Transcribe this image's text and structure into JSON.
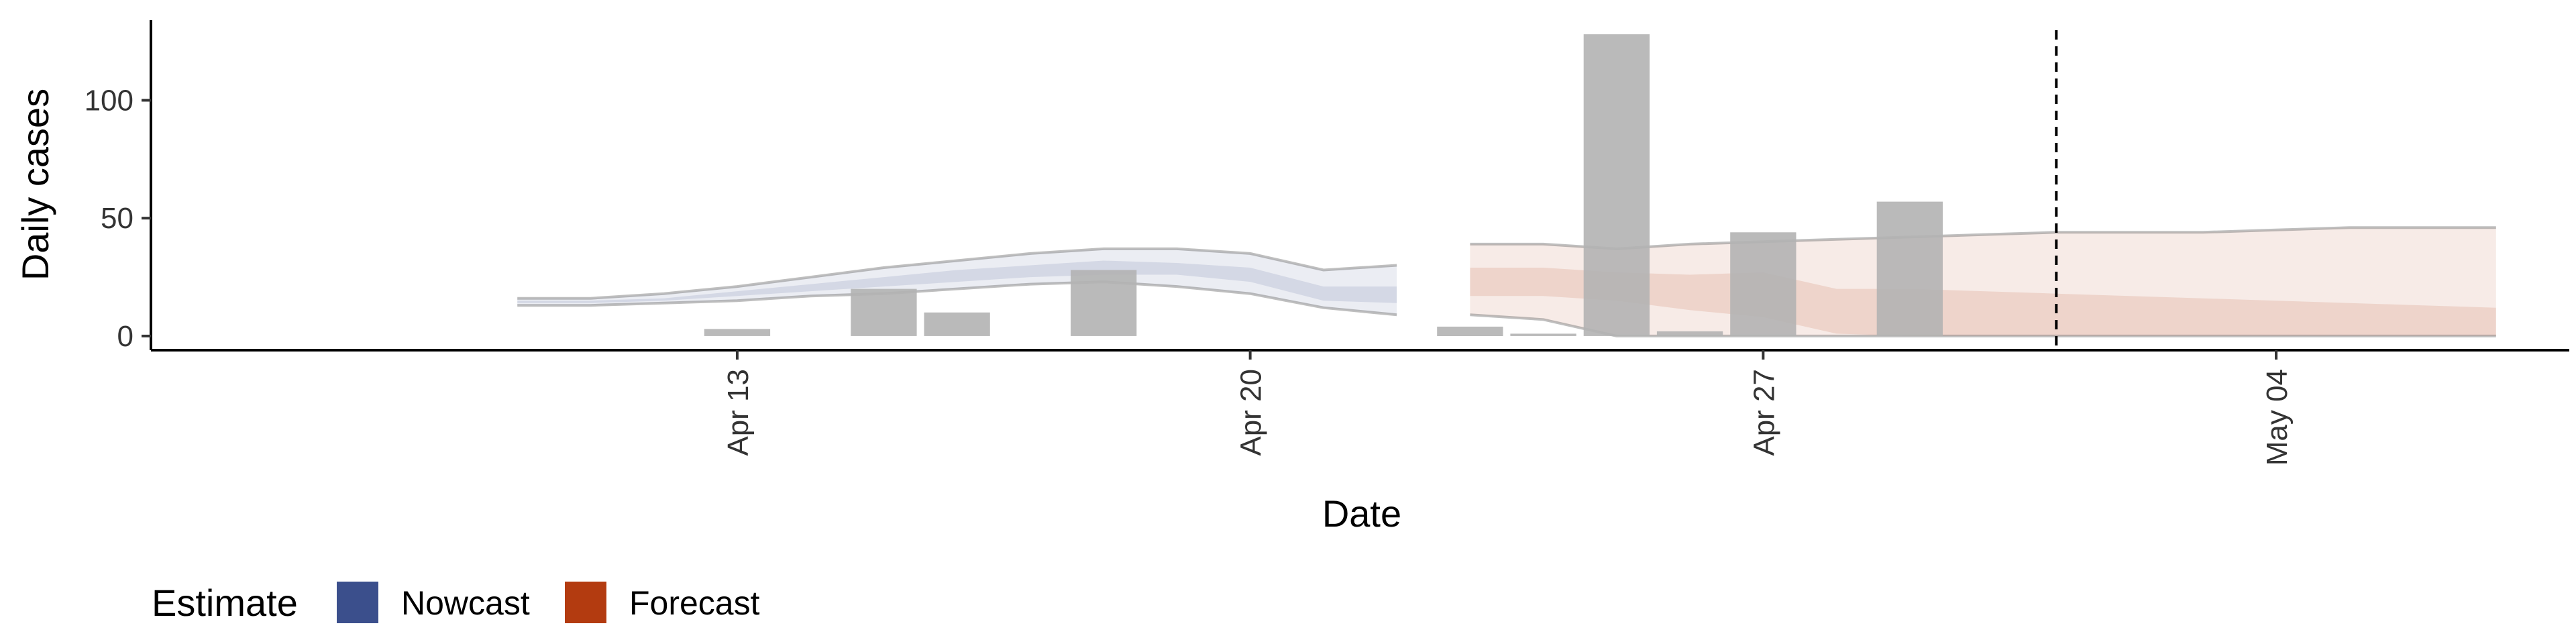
{
  "chart_data": {
    "type": "bar",
    "title": "",
    "xlabel": "Date",
    "ylabel": "Daily cases",
    "x_ticks": [
      {
        "date": "2020-04-13",
        "label": "Apr 13"
      },
      {
        "date": "2020-04-20",
        "label": "Apr 20"
      },
      {
        "date": "2020-04-27",
        "label": "Apr 27"
      },
      {
        "date": "2020-05-04",
        "label": "May 04"
      }
    ],
    "y_ticks": [
      0,
      50,
      100
    ],
    "xlim": [
      "2020-04-05",
      "2020-05-08"
    ],
    "ylim": [
      -6,
      134
    ],
    "grid": false,
    "reference_line": {
      "date": "2020-05-01",
      "style": "dashed"
    },
    "observed_cases": {
      "name": "",
      "color": "#b3b3b3",
      "dates": [
        "2020-04-13",
        "2020-04-14",
        "2020-04-15",
        "2020-04-16",
        "2020-04-17",
        "2020-04-18",
        "2020-04-19",
        "2020-04-20",
        "2020-04-21",
        "2020-04-22",
        "2020-04-23",
        "2020-04-24",
        "2020-04-25",
        "2020-04-26",
        "2020-04-27",
        "2020-04-28",
        "2020-04-29",
        "2020-04-30"
      ],
      "values": [
        3,
        0,
        20,
        10,
        0,
        28,
        0,
        0,
        0,
        0,
        4,
        1,
        128,
        2,
        44,
        0,
        57,
        0
      ]
    },
    "series": [
      {
        "name": "Nowcast",
        "color": "#3b4f8c",
        "dates": [
          "2020-04-10",
          "2020-04-11",
          "2020-04-12",
          "2020-04-13",
          "2020-04-14",
          "2020-04-15",
          "2020-04-16",
          "2020-04-17",
          "2020-04-18",
          "2020-04-19",
          "2020-04-20",
          "2020-04-21",
          "2020-04-22"
        ],
        "lower_90": [
          13,
          13,
          14,
          15,
          17,
          18,
          20,
          22,
          23,
          21,
          18,
          12,
          9
        ],
        "upper_90": [
          16,
          16,
          18,
          21,
          25,
          29,
          32,
          35,
          37,
          37,
          35,
          28,
          30
        ],
        "lower_50": [
          14,
          14,
          15,
          17,
          19,
          21,
          23,
          25,
          26,
          26,
          23,
          15,
          14
        ],
        "upper_50": [
          15,
          15,
          16,
          19,
          22,
          25,
          28,
          30,
          32,
          31,
          29,
          21,
          21
        ]
      },
      {
        "name": "Forecast",
        "color": "#b33b10",
        "dates": [
          "2020-04-23",
          "2020-04-24",
          "2020-04-25",
          "2020-04-26",
          "2020-04-27",
          "2020-04-28",
          "2020-04-29",
          "2020-04-30",
          "2020-05-01",
          "2020-05-02",
          "2020-05-03",
          "2020-05-04",
          "2020-05-05",
          "2020-05-06",
          "2020-05-07"
        ],
        "lower_90": [
          9,
          7,
          0,
          0,
          0,
          0,
          0,
          0,
          0,
          0,
          0,
          0,
          0,
          0,
          0
        ],
        "upper_90": [
          39,
          39,
          37,
          39,
          40,
          41,
          42,
          43,
          44,
          44,
          44,
          45,
          46,
          46,
          46
        ],
        "lower_50": [
          17,
          17,
          15,
          11,
          8,
          1,
          0,
          0,
          0,
          0,
          0,
          0,
          0,
          0,
          0
        ],
        "upper_50": [
          29,
          29,
          27,
          26,
          27,
          20,
          20,
          19,
          18,
          17,
          16,
          15,
          14,
          13,
          12
        ]
      }
    ],
    "legend": {
      "title": "Estimate",
      "position": "bottom-left",
      "items": [
        {
          "label": "Nowcast",
          "color": "#3b4f8c"
        },
        {
          "label": "Forecast",
          "color": "#b33b10"
        }
      ]
    }
  }
}
